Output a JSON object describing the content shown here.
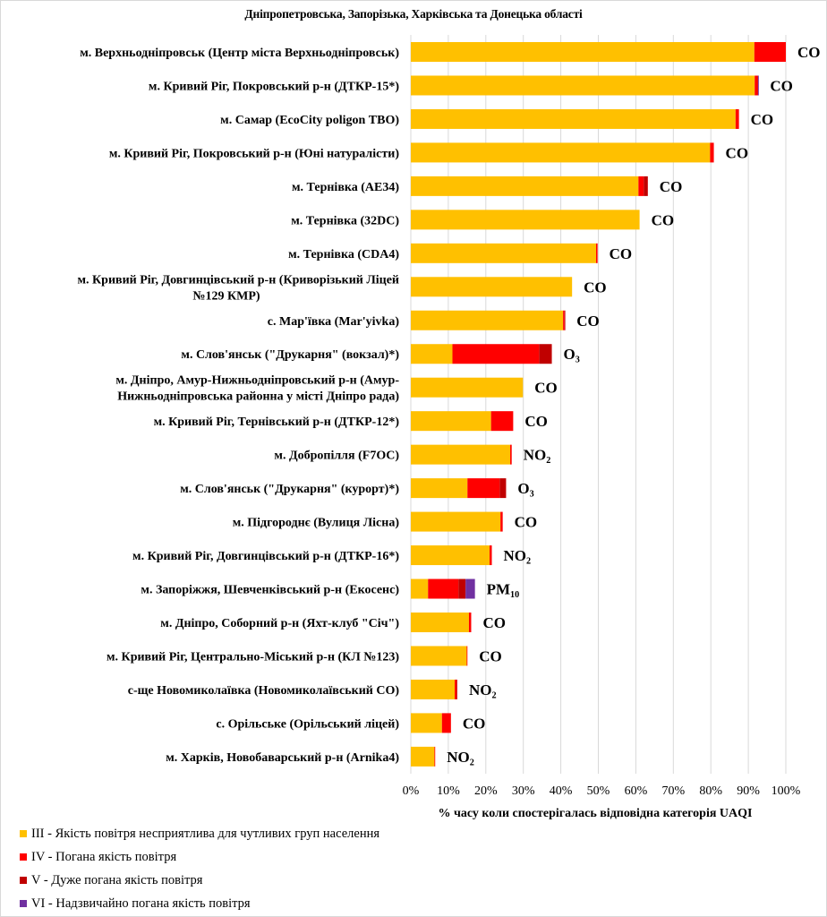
{
  "chart_data": {
    "type": "bar",
    "orientation": "horizontal",
    "stacked": true,
    "title": "Дніпропетровська, Запорізька, Харківська та Донецька області",
    "xlabel": "% часу коли спостерігалась відповідна категорія UAQI",
    "ylabel": "",
    "xlim": [
      0,
      100
    ],
    "x_ticks": [
      "0%",
      "10%",
      "20%",
      "30%",
      "40%",
      "50%",
      "60%",
      "70%",
      "80%",
      "90%",
      "100%"
    ],
    "grid": true,
    "legend_position": "bottom-left",
    "categories": [
      "м. Верхньодніпровськ (Центр міста Верхньодніпровськ)",
      "м. Кривий Ріг, Покровський р-н (ДТКР-15*)",
      "м. Самар (EcoCity poligon ТВО)",
      "м. Кривий Ріг, Покровський р-н (Юні натуралісти)",
      "м. Тернівка (AE34)",
      "м. Тернівка (32DC)",
      "м. Тернівка (CDA4)",
      "м. Кривий Ріг, Довгинцівський р-н (Криворізький Ліцей №129 КМР)",
      "с. Мар'ївка (Mar'yivka)",
      "м. Слов'янськ (\"Друкарня\" (вокзал)*)",
      "м. Дніпро, Амур-Нижньодніпровський р-н (Амур-Нижньодніпровська районна у місті Дніпро рада)",
      "м. Кривий Ріг, Тернівський р-н (ДТКР-12*)",
      "м. Добропілля (F7OC)",
      "м. Слов'янськ (\"Друкарня\" (курорт)*)",
      "м. Підгороднє (Вулиця Лісна)",
      "м. Кривий Ріг, Довгинцівський р-н (ДТКР-16*)",
      "м. Запоріжжя, Шевченківський р-н (Екосенс)",
      "м. Дніпро, Соборний р-н (Яхт-клуб \"Січ\")",
      "м. Кривий Ріг, Центрально-Міський р-н (КЛ №123)",
      "с-ще Новомиколаївка (Новомиколаївський СО)",
      "с. Орільське (Орільський ліцей)",
      "м. Харків, Новобаварський р-н (Arnika4)"
    ],
    "category_lines": [
      [
        "м. Верхньодніпровськ (Центр міста Верхньодніпровськ)"
      ],
      [
        "м. Кривий Ріг, Покровський р-н (ДТКР-15*)"
      ],
      [
        "м. Самар (EcoCity poligon ТВО)"
      ],
      [
        "м. Кривий Ріг, Покровський р-н (Юні натуралісти)"
      ],
      [
        "м. Тернівка (AE34)"
      ],
      [
        "м. Тернівка (32DC)"
      ],
      [
        "м. Тернівка (CDA4)"
      ],
      [
        "м. Кривий Ріг, Довгинцівський р-н (Криворізький Ліцей",
        "№129 КМР)"
      ],
      [
        "с. Мар'ївка (Mar'yivka)"
      ],
      [
        "м. Слов'янськ (\"Друкарня\" (вокзал)*)"
      ],
      [
        "м. Дніпро, Амур-Нижньодніпровський р-н (Амур-",
        "Нижньодніпровська районна у місті Дніпро рада)"
      ],
      [
        "м. Кривий Ріг, Тернівський р-н (ДТКР-12*)"
      ],
      [
        "м. Добропілля (F7OC)"
      ],
      [
        "м. Слов'янськ (\"Друкарня\" (курорт)*)"
      ],
      [
        "м. Підгороднє (Вулиця Лісна)"
      ],
      [
        "м. Кривий Ріг, Довгинцівський р-н (ДТКР-16*)"
      ],
      [
        "м. Запоріжжя, Шевченківський р-н (Екосенс)"
      ],
      [
        "м. Дніпро, Соборний р-н (Яхт-клуб \"Січ\")"
      ],
      [
        "м. Кривий Ріг, Центрально-Міський р-н (КЛ №123)"
      ],
      [
        "с-ще Новомиколаївка (Новомиколаївський СО)"
      ],
      [
        "с. Орільське (Орільський ліцей)"
      ],
      [
        "м. Харків, Новобаварський р-н (Arnika4)"
      ]
    ],
    "pollutants": [
      "CO",
      "CO",
      "CO",
      "CO",
      "CO",
      "CO",
      "CO",
      "CO",
      "CO",
      "O₃",
      "CO",
      "CO",
      "NO₂",
      "O₃",
      "CO",
      "NO₂",
      "PM₁₀",
      "CO",
      "CO",
      "NO₂",
      "CO",
      "NO₂"
    ],
    "series": [
      {
        "name": "III - Якість повітря несприятлива для чутливих груп населення",
        "color": "#FFC000",
        "values": [
          91.6,
          91.7,
          86.6,
          79.8,
          60.7,
          61.0,
          49.4,
          43.0,
          40.6,
          11.1,
          29.9,
          21.4,
          26.5,
          15.1,
          23.9,
          21.0,
          4.6,
          15.5,
          14.9,
          11.7,
          8.3,
          6.3
        ]
      },
      {
        "name": "IV - Погана якість повітря",
        "color": "#FF0000",
        "values": [
          8.4,
          0.8,
          0.9,
          1.0,
          1.4,
          0.0,
          0.4,
          0.0,
          0.4,
          23.1,
          0.0,
          5.9,
          0.4,
          8.6,
          0.6,
          0.6,
          8.1,
          0.6,
          0.2,
          0.5,
          2.4,
          0.2
        ]
      },
      {
        "name": "V - Дуже погана якість повітря",
        "color": "#C00000",
        "values": [
          0.0,
          0.1,
          0.0,
          0.0,
          1.1,
          0.0,
          0.0,
          0.0,
          0.1,
          3.4,
          0.0,
          0.0,
          0.0,
          1.7,
          0.0,
          0.0,
          1.9,
          0.0,
          0.0,
          0.2,
          0.0,
          0.0
        ]
      },
      {
        "name": "VI - Надзвичайно погана якість повітря",
        "color": "#7030A0",
        "values": [
          0.0,
          0.1,
          0.0,
          0.0,
          0.0,
          0.0,
          0.0,
          0.0,
          0.0,
          0.0,
          0.0,
          0.0,
          0.0,
          0.0,
          0.0,
          0.0,
          2.5,
          0.0,
          0.0,
          0.0,
          0.0,
          0.0
        ]
      }
    ]
  },
  "legend": [
    {
      "label": "III - Якість повітря несприятлива для чутливих груп населення",
      "color": "#FFC000"
    },
    {
      "label": "IV - Погана якість повітря",
      "color": "#FF0000"
    },
    {
      "label": "V - Дуже погана якість повітря",
      "color": "#C00000"
    },
    {
      "label": "VI - Надзвичайно погана якість повітря",
      "color": "#7030A0"
    }
  ]
}
